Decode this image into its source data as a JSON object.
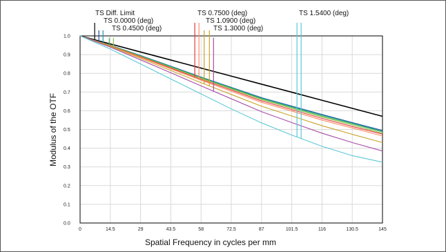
{
  "chart_data": {
    "type": "line",
    "title": "",
    "xlabel": "Spatial Frequency in cycles per mm",
    "ylabel": "Modulus of the OTF",
    "xlim": [
      0,
      145
    ],
    "ylim": [
      0,
      1.0
    ],
    "x_ticks": [
      "0",
      "14.5",
      "29",
      "43.5",
      "58",
      "72.5",
      "87",
      "101.5",
      "116",
      "130.5",
      "145"
    ],
    "y_ticks": [
      "0.0",
      "0.1",
      "0.2",
      "0.3",
      "0.4",
      "0.5",
      "0.6",
      "0.7",
      "0.8",
      "0.9",
      "1.0"
    ],
    "grid": true,
    "legend_entries": [
      "TS Diff. Limit",
      "TS 0.0000 (deg)",
      "TS 0.4500 (deg)",
      "TS 0.7500 (deg)",
      "TS 1.0900 (deg)",
      "TS 1.3000 (deg)",
      "TS 1.5400 (deg)"
    ],
    "series": [
      {
        "name": "TS Diff. Limit",
        "color": "#000000",
        "x": [
          0,
          14.5,
          29,
          43.5,
          58,
          72.5,
          87,
          101.5,
          116,
          130.5,
          145
        ],
        "values": [
          1.0,
          0.957,
          0.914,
          0.871,
          0.828,
          0.785,
          0.742,
          0.699,
          0.656,
          0.613,
          0.57
        ]
      },
      {
        "name": "TS 0.0000 (deg)",
        "color": "#1f4e9e",
        "x": [
          0,
          14.5,
          29,
          43.5,
          58,
          72.5,
          87,
          101.5,
          116,
          130.5,
          145
        ],
        "values": [
          1.0,
          0.95,
          0.895,
          0.838,
          0.78,
          0.725,
          0.67,
          0.625,
          0.58,
          0.537,
          0.495
        ]
      },
      {
        "name": "TS 0.0000 (deg)",
        "color": "#1a9ba0",
        "x": [
          0,
          14.5,
          29,
          43.5,
          58,
          72.5,
          87,
          101.5,
          116,
          130.5,
          145
        ],
        "values": [
          1.0,
          0.95,
          0.894,
          0.836,
          0.778,
          0.723,
          0.668,
          0.622,
          0.577,
          0.534,
          0.49
        ]
      },
      {
        "name": "TS 0.4500 (deg)",
        "color": "#4caf50",
        "x": [
          0,
          14.5,
          29,
          43.5,
          58,
          72.5,
          87,
          101.5,
          116,
          130.5,
          145
        ],
        "values": [
          1.0,
          0.949,
          0.892,
          0.834,
          0.776,
          0.72,
          0.664,
          0.618,
          0.572,
          0.53,
          0.487
        ]
      },
      {
        "name": "TS 0.4500 (deg)",
        "color": "#8bc34a",
        "x": [
          0,
          14.5,
          29,
          43.5,
          58,
          72.5,
          87,
          101.5,
          116,
          130.5,
          145
        ],
        "values": [
          1.0,
          0.948,
          0.89,
          0.832,
          0.773,
          0.717,
          0.66,
          0.613,
          0.567,
          0.524,
          0.48
        ]
      },
      {
        "name": "TS 0.7500 (deg)",
        "color": "#e53935",
        "x": [
          0,
          14.5,
          29,
          43.5,
          58,
          72.5,
          87,
          101.5,
          116,
          130.5,
          145
        ],
        "values": [
          1.0,
          0.947,
          0.888,
          0.828,
          0.768,
          0.711,
          0.653,
          0.606,
          0.559,
          0.516,
          0.475
        ]
      },
      {
        "name": "TS 0.7500 (deg)",
        "color": "#ff8a65",
        "x": [
          0,
          14.5,
          29,
          43.5,
          58,
          72.5,
          87,
          101.5,
          116,
          130.5,
          145
        ],
        "values": [
          1.0,
          0.946,
          0.885,
          0.824,
          0.763,
          0.704,
          0.645,
          0.598,
          0.55,
          0.508,
          0.465
        ]
      },
      {
        "name": "TS 1.0900 (deg)",
        "color": "#c9a227",
        "x": [
          0,
          14.5,
          29,
          43.5,
          58,
          72.5,
          87,
          101.5,
          116,
          130.5,
          145
        ],
        "values": [
          1.0,
          0.944,
          0.88,
          0.815,
          0.75,
          0.687,
          0.624,
          0.572,
          0.52,
          0.474,
          0.43
        ]
      },
      {
        "name": "TS 1.3000 (deg)",
        "color": "#a64ca6",
        "x": [
          0,
          14.5,
          29,
          43.5,
          58,
          72.5,
          87,
          101.5,
          116,
          130.5,
          145
        ],
        "values": [
          1.0,
          0.94,
          0.872,
          0.803,
          0.733,
          0.664,
          0.595,
          0.537,
          0.48,
          0.43,
          0.385
        ]
      },
      {
        "name": "TS 1.5400 (deg)",
        "color": "#5bc8d6",
        "x": [
          0,
          14.5,
          29,
          43.5,
          58,
          72.5,
          87,
          101.5,
          116,
          130.5,
          145
        ],
        "values": [
          1.0,
          0.93,
          0.85,
          0.77,
          0.69,
          0.61,
          0.535,
          0.47,
          0.41,
          0.36,
          0.325
        ]
      }
    ],
    "markers": [
      {
        "x": 7.0,
        "color": "#000000",
        "top": 1.07
      },
      {
        "x": 9.0,
        "color": "#1f4e9e",
        "top": 1.03
      },
      {
        "x": 11.0,
        "color": "#1a9ba0",
        "top": 1.03
      },
      {
        "x": 14.0,
        "color": "#4caf50",
        "top": 0.99
      },
      {
        "x": 16.0,
        "color": "#8bc34a",
        "top": 0.99
      },
      {
        "x": 55.0,
        "color": "#e53935",
        "top": 1.07
      },
      {
        "x": 57.0,
        "color": "#ff8a65",
        "top": 1.07
      },
      {
        "x": 59.5,
        "color": "#c9a227",
        "top": 1.03
      },
      {
        "x": 62.0,
        "color": "#c9a227",
        "top": 1.03
      },
      {
        "x": 64.0,
        "color": "#a64ca6",
        "top": 0.99
      },
      {
        "x": 104.0,
        "color": "#5bc8d6",
        "top": 1.07
      },
      {
        "x": 106.0,
        "color": "#5bc8d6",
        "top": 1.07
      }
    ]
  }
}
